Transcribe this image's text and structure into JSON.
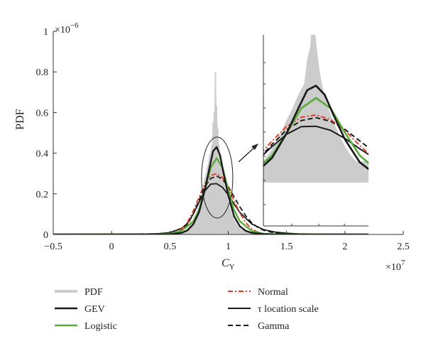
{
  "chart_data": {
    "type": "line",
    "xlabel": "C",
    "xlabel_sub": "Y",
    "ylabel": "PDF",
    "x_multiplier": "×10",
    "x_multiplier_exp": "7",
    "y_multiplier": "×10",
    "y_multiplier_exp": "−6",
    "xlim": [
      -0.5,
      2.5
    ],
    "ylim": [
      0,
      1
    ],
    "xticks": [
      {
        "v": -0.5,
        "label": "−0.5"
      },
      {
        "v": 0,
        "label": "0"
      },
      {
        "v": 0.5,
        "label": "0.5"
      },
      {
        "v": 1,
        "label": "1"
      },
      {
        "v": 1.5,
        "label": "1.5"
      },
      {
        "v": 2,
        "label": "2"
      },
      {
        "v": 2.5,
        "label": "2.5"
      }
    ],
    "yticks": [
      {
        "v": 0,
        "label": "0"
      },
      {
        "v": 0.2,
        "label": "0.2"
      },
      {
        "v": 0.4,
        "label": "0.4"
      },
      {
        "v": 0.6,
        "label": "0.6"
      },
      {
        "v": 0.8,
        "label": "0.8"
      },
      {
        "v": 1,
        "label": "1"
      }
    ],
    "histogram": {
      "name": "PDF",
      "color": "#cccccc",
      "x": [
        0.55,
        0.6,
        0.65,
        0.7,
        0.72,
        0.74,
        0.76,
        0.78,
        0.8,
        0.82,
        0.84,
        0.86,
        0.87,
        0.88,
        0.89,
        0.9,
        0.91,
        0.92,
        0.93,
        0.94,
        0.96,
        0.98,
        1.0,
        1.02,
        1.04,
        1.06,
        1.08,
        1.1,
        1.15,
        1.2,
        1.25,
        1.3
      ],
      "values": [
        0.003,
        0.012,
        0.03,
        0.07,
        0.095,
        0.13,
        0.17,
        0.22,
        0.28,
        0.33,
        0.39,
        0.44,
        0.55,
        0.6,
        0.8,
        0.63,
        0.52,
        0.44,
        0.38,
        0.34,
        0.27,
        0.21,
        0.16,
        0.12,
        0.09,
        0.065,
        0.045,
        0.03,
        0.014,
        0.006,
        0.003,
        0.001
      ]
    },
    "series": [
      {
        "name": "GEV",
        "color": "#1a1a1a",
        "style": "solid",
        "x": [
          -0.5,
          0.5,
          0.6,
          0.65,
          0.7,
          0.75,
          0.8,
          0.84,
          0.87,
          0.9,
          0.93,
          0.96,
          1.0,
          1.05,
          1.1,
          1.15,
          1.2,
          1.3,
          1.4,
          1.6,
          2.2
        ],
        "values": [
          0,
          0.001,
          0.008,
          0.02,
          0.05,
          0.11,
          0.22,
          0.33,
          0.41,
          0.43,
          0.39,
          0.3,
          0.19,
          0.09,
          0.04,
          0.018,
          0.008,
          0.002,
          0.0005,
          0,
          0
        ]
      },
      {
        "name": "Logistic",
        "color": "#5aaa3c",
        "style": "solid",
        "x": [
          -0.5,
          0.4,
          0.5,
          0.6,
          0.7,
          0.75,
          0.8,
          0.85,
          0.9,
          0.95,
          1.0,
          1.05,
          1.1,
          1.2,
          1.3,
          1.4,
          1.6,
          2.2
        ],
        "values": [
          0,
          0.001,
          0.004,
          0.018,
          0.065,
          0.12,
          0.22,
          0.33,
          0.375,
          0.33,
          0.22,
          0.12,
          0.065,
          0.018,
          0.004,
          0.001,
          0,
          0
        ]
      },
      {
        "name": "Normal",
        "color": "#e03c1e",
        "style": "dashdot",
        "x": [
          -0.5,
          0.45,
          0.5,
          0.55,
          0.6,
          0.65,
          0.7,
          0.75,
          0.8,
          0.85,
          0.9,
          0.95,
          1.0,
          1.05,
          1.1,
          1.15,
          1.2,
          1.25,
          1.3,
          1.35,
          1.4,
          2.2
        ],
        "values": [
          0,
          0.0008,
          0.003,
          0.009,
          0.026,
          0.06,
          0.115,
          0.185,
          0.25,
          0.29,
          0.3,
          0.28,
          0.23,
          0.165,
          0.105,
          0.058,
          0.028,
          0.012,
          0.004,
          0.0013,
          0.0004,
          0
        ]
      },
      {
        "name": "τ location scale",
        "color": "#1a1a1a",
        "style": "solid",
        "x": [
          -0.5,
          0.3,
          0.4,
          0.5,
          0.6,
          0.65,
          0.7,
          0.75,
          0.8,
          0.85,
          0.9,
          0.95,
          1.0,
          1.05,
          1.1,
          1.2,
          1.3,
          1.4,
          1.5,
          1.6,
          1.8,
          2.2
        ],
        "values": [
          0.0005,
          0.002,
          0.004,
          0.009,
          0.03,
          0.055,
          0.1,
          0.16,
          0.215,
          0.248,
          0.25,
          0.232,
          0.195,
          0.15,
          0.108,
          0.052,
          0.024,
          0.012,
          0.006,
          0.003,
          0.001,
          0.0003
        ]
      },
      {
        "name": "Gamma",
        "color": "#1a1a1a",
        "style": "dashed",
        "x": [
          -0.5,
          0.5,
          0.55,
          0.6,
          0.65,
          0.7,
          0.75,
          0.8,
          0.85,
          0.9,
          0.95,
          1.0,
          1.05,
          1.1,
          1.15,
          1.2,
          1.25,
          1.3,
          1.4,
          1.5,
          1.7,
          2.2
        ],
        "values": [
          0,
          0.003,
          0.008,
          0.022,
          0.05,
          0.1,
          0.17,
          0.235,
          0.275,
          0.288,
          0.272,
          0.235,
          0.185,
          0.135,
          0.092,
          0.058,
          0.036,
          0.021,
          0.007,
          0.002,
          0.0003,
          0
        ]
      }
    ],
    "legend": [
      {
        "name": "PDF",
        "color": "#cccccc",
        "style": "solid",
        "width": 4,
        "col": 0,
        "row": 0
      },
      {
        "name": "GEV",
        "color": "#1a1a1a",
        "style": "solid",
        "width": 2.6,
        "col": 0,
        "row": 1
      },
      {
        "name": "Logistic",
        "color": "#5aaa3c",
        "style": "solid",
        "width": 2.6,
        "col": 0,
        "row": 2
      },
      {
        "name": "Normal",
        "color": "#e03c1e",
        "style": "dashdot",
        "width": 2,
        "col": 1,
        "row": 0
      },
      {
        "name": "τ location scale",
        "color": "#1a1a1a",
        "style": "solid",
        "width": 2,
        "col": 1,
        "row": 1
      },
      {
        "name": "Gamma",
        "color": "#1a1a1a",
        "style": "dashed",
        "width": 2,
        "col": 1,
        "row": 2
      }
    ],
    "legend_placement": "bottom",
    "inset": {
      "zoom_xlim": [
        0.72,
        1.08
      ],
      "zoom_ylim": [
        0,
        0.52
      ],
      "zoom_center": [
        0.905,
        0.28
      ]
    },
    "grid": false
  }
}
